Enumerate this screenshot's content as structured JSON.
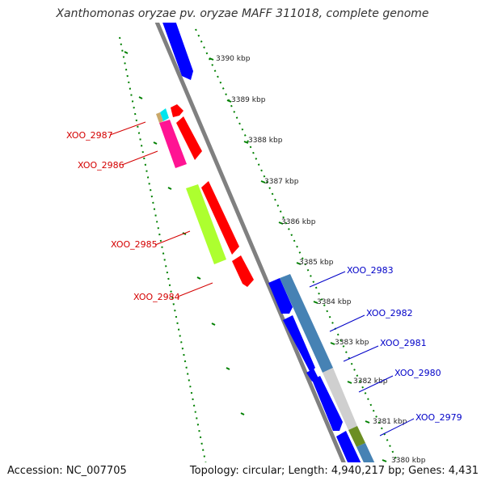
{
  "title": "Xanthomonas oryzae pv. oryzae MAFF 311018, complete genome",
  "accession": "Accession: NC_007705",
  "topology": "Topology: circular; Length: 4,940,217 bp; Genes: 4,431",
  "ticks": [
    "3390 kbp",
    "3389 kbp",
    "3388 kbp",
    "3387 kbp",
    "3386 kbp",
    "3385 kbp",
    "3384 kbp",
    "3383 kbp",
    "3382 kbp",
    "3381 kbp",
    "3380 kbp"
  ],
  "genes_left": [
    "XOO_2987",
    "XOO_2986",
    "XOO_2985",
    "XOO_2984"
  ],
  "genes_right": [
    "XOO_2983",
    "XOO_2982",
    "XOO_2981",
    "XOO_2980",
    "XOO_2979"
  ],
  "colors": {
    "forward_cds": "#0000ff",
    "reverse_cds": "#ff0000",
    "left_label": "#d40000",
    "right_label": "#0000c8",
    "tick_marks": "#008000",
    "backbone": "#808080"
  }
}
